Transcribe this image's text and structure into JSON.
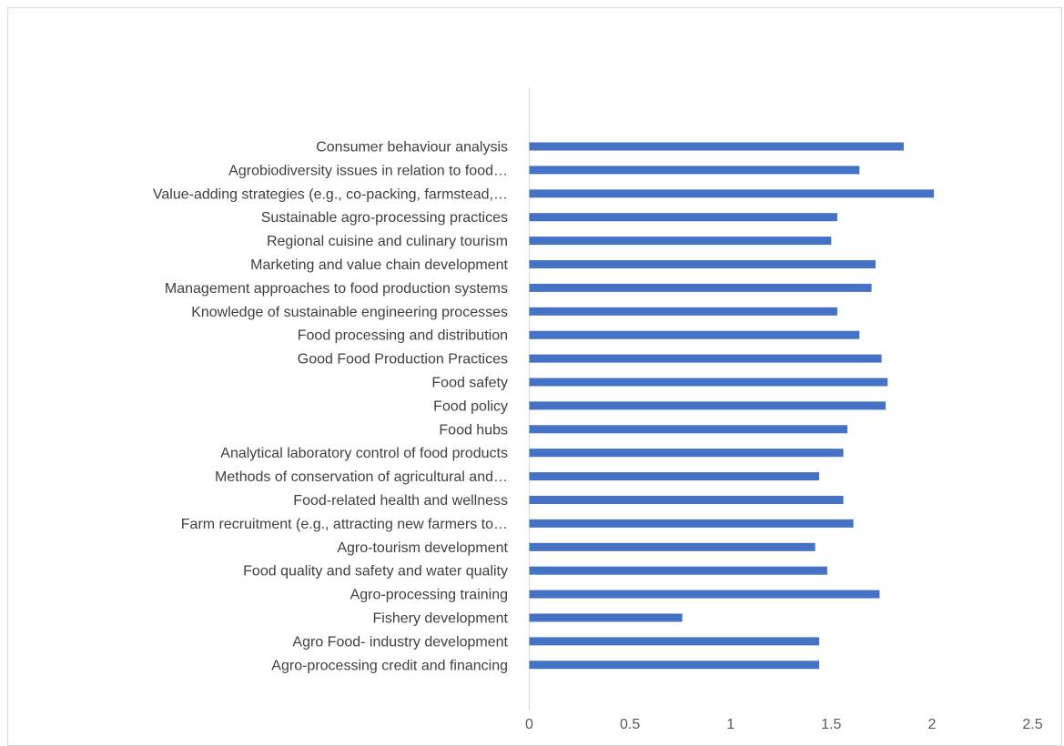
{
  "chart_data": {
    "type": "bar",
    "orientation": "horizontal",
    "title": "",
    "xlabel": "",
    "ylabel": "",
    "xlim": [
      0,
      2.5
    ],
    "xticks": [
      "0",
      "0.5",
      "1",
      "1.5",
      "2",
      "2.5"
    ],
    "grid": false,
    "legend": "none",
    "bar_color": "#4472c4",
    "categories": [
      "Consumer behaviour analysis",
      "Agrobiodiversity issues in relation to food…",
      "Value-adding strategies (e.g., co-packing, farmstead,…",
      "Sustainable agro-processing practices",
      "Regional cuisine and culinary tourism",
      "Marketing and value chain development",
      "Management approaches to food production systems",
      "Knowledge of sustainable engineering processes",
      "Food processing and distribution",
      "Good Food Production Practices",
      "Food safety",
      "Food policy",
      "Food hubs",
      "Analytical laboratory control of food products",
      "Methods of conservation of agricultural and…",
      "Food-related health and wellness",
      "Farm recruitment (e.g., attracting new farmers to…",
      "Agro-tourism development",
      "Food quality and safety and water quality",
      "Agro-processing training",
      "Fishery development",
      "Agro Food- industry development",
      "Agro-processing credit and financing"
    ],
    "values": [
      1.86,
      1.64,
      2.01,
      1.53,
      1.5,
      1.72,
      1.7,
      1.53,
      1.64,
      1.75,
      1.78,
      1.77,
      1.58,
      1.56,
      1.44,
      1.56,
      1.61,
      1.42,
      1.48,
      1.74,
      0.76,
      1.44,
      1.44
    ]
  }
}
